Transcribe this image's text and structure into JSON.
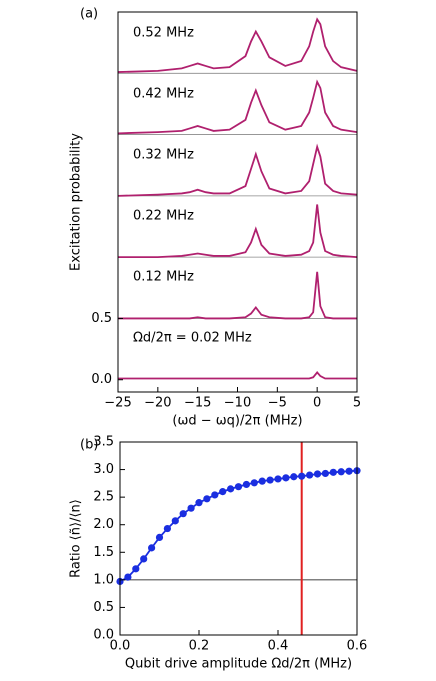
{
  "chart_data": [
    {
      "type": "line",
      "panel_label": "(a)",
      "ylabel": "Excitation probability",
      "xlabel": "(ωd − ωq)/2π (MHz)",
      "xlim": [
        -25,
        5
      ],
      "ylim": [
        -0.1,
        3.0
      ],
      "xticks": [
        {
          "value": -25,
          "label": "−25"
        },
        {
          "value": -20,
          "label": "−20"
        },
        {
          "value": -15,
          "label": "−15"
        },
        {
          "value": -10,
          "label": "−10"
        },
        {
          "value": -5,
          "label": "−5"
        },
        0,
        5
      ],
      "yticks": [
        {
          "value": 0,
          "label": "0.0"
        },
        {
          "value": 0.5,
          "label": "0.5"
        }
      ],
      "hlines": [
        0.5,
        1,
        1.5,
        2,
        2.5
      ],
      "x": [
        -25,
        -20,
        -17,
        -16,
        -15,
        -14,
        -13,
        -11,
        -9,
        -8.3,
        -7.7,
        -7,
        -6,
        -4,
        -2,
        -1,
        -0.5,
        0,
        0.4,
        1,
        2,
        3,
        5
      ],
      "series": [
        {
          "name": "0.52 MHz",
          "color": "#b0206e",
          "values": [
            2.51,
            2.52,
            2.54,
            2.56,
            2.58,
            2.56,
            2.54,
            2.55,
            2.64,
            2.76,
            2.84,
            2.76,
            2.63,
            2.56,
            2.6,
            2.72,
            2.84,
            2.94,
            2.9,
            2.72,
            2.6,
            2.55,
            2.52
          ]
        },
        {
          "name": "0.42 MHz",
          "color": "#b0206e",
          "values": [
            2.01,
            2.02,
            2.03,
            2.05,
            2.07,
            2.05,
            2.03,
            2.04,
            2.12,
            2.26,
            2.36,
            2.24,
            2.1,
            2.04,
            2.07,
            2.18,
            2.3,
            2.43,
            2.38,
            2.18,
            2.07,
            2.04,
            2.02
          ]
        },
        {
          "name": "0.32 MHz",
          "color": "#b0206e",
          "values": [
            1.5,
            1.51,
            1.52,
            1.53,
            1.55,
            1.53,
            1.52,
            1.52,
            1.58,
            1.72,
            1.84,
            1.7,
            1.56,
            1.52,
            1.54,
            1.62,
            1.76,
            1.9,
            1.82,
            1.6,
            1.54,
            1.52,
            1.51
          ]
        },
        {
          "name": "0.22 MHz",
          "color": "#b0206e",
          "values": [
            1.0,
            1.0,
            1.01,
            1.02,
            1.03,
            1.02,
            1.01,
            1.01,
            1.04,
            1.12,
            1.23,
            1.1,
            1.03,
            1.01,
            1.02,
            1.05,
            1.12,
            1.43,
            1.2,
            1.05,
            1.02,
            1.01,
            1.0
          ]
        },
        {
          "name": "0.12 MHz",
          "color": "#b0206e",
          "values": [
            0.5,
            0.5,
            0.5,
            0.5,
            0.51,
            0.5,
            0.5,
            0.5,
            0.51,
            0.54,
            0.59,
            0.53,
            0.51,
            0.5,
            0.5,
            0.51,
            0.55,
            0.88,
            0.6,
            0.51,
            0.5,
            0.5,
            0.5
          ]
        },
        {
          "name": "Ωd/2π = 0.02 MHz",
          "color": "#b0206e",
          "values": [
            0.01,
            0.01,
            0.01,
            0.01,
            0.01,
            0.01,
            0.01,
            0.01,
            0.01,
            0.01,
            0.01,
            0.01,
            0.01,
            0.01,
            0.01,
            0.01,
            0.02,
            0.06,
            0.03,
            0.01,
            0.01,
            0.01,
            0.01
          ]
        }
      ]
    },
    {
      "type": "line",
      "markers": true,
      "panel_label": "(b)",
      "ylabel": "Ratio ⟨ñ⟩/⟨n⟩",
      "xlabel": "Qubit drive amplitude Ωd/2π (MHz)",
      "xlim": [
        0,
        0.6
      ],
      "ylim": [
        0,
        3.5
      ],
      "xticks": [
        {
          "value": 0,
          "label": "0.0"
        },
        0.2,
        0.4,
        0.6
      ],
      "yticks": [
        {
          "value": 0,
          "label": "0.0"
        },
        0.5,
        {
          "value": 1,
          "label": "1.0"
        },
        1.5,
        {
          "value": 2,
          "label": "2.0"
        },
        2.5,
        {
          "value": 3,
          "label": "3.0"
        },
        3.5
      ],
      "hlines": [
        1.0
      ],
      "vline": 0.46,
      "vline_color": "#e02020",
      "x": [
        0,
        0.02,
        0.04,
        0.06,
        0.08,
        0.1,
        0.12,
        0.14,
        0.16,
        0.18,
        0.2,
        0.22,
        0.24,
        0.26,
        0.28,
        0.3,
        0.32,
        0.34,
        0.36,
        0.38,
        0.4,
        0.42,
        0.44,
        0.46,
        0.48,
        0.5,
        0.52,
        0.54,
        0.56,
        0.58,
        0.6
      ],
      "series": [
        {
          "name": null,
          "color": "#1a2ee0",
          "values": [
            0.97,
            1.05,
            1.2,
            1.38,
            1.58,
            1.77,
            1.93,
            2.07,
            2.2,
            2.3,
            2.4,
            2.47,
            2.54,
            2.6,
            2.65,
            2.69,
            2.73,
            2.76,
            2.79,
            2.81,
            2.83,
            2.85,
            2.87,
            2.88,
            2.9,
            2.92,
            2.93,
            2.95,
            2.96,
            2.97,
            2.98
          ]
        }
      ]
    }
  ]
}
